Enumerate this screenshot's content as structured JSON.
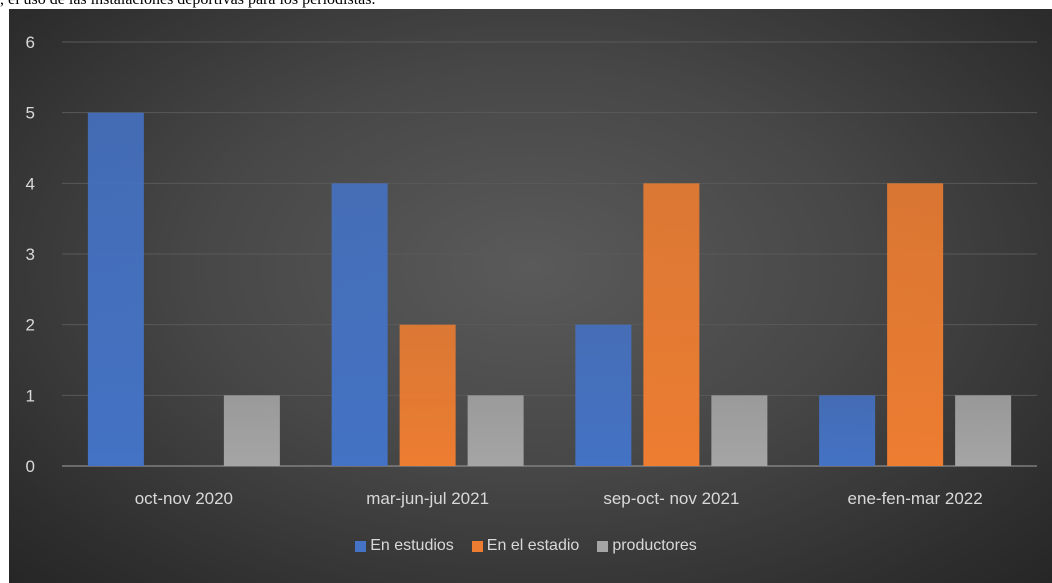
{
  "caption": ", el uso de las instalaciones deportivas para los periodistas.",
  "chart_data": {
    "type": "bar",
    "categories": [
      "oct-nov 2020",
      "mar-jun-jul 2021",
      "sep-oct- nov 2021",
      "ene-fen-mar 2022"
    ],
    "series": [
      {
        "name": "En estudios",
        "values": [
          5,
          4,
          2,
          1
        ],
        "color": "#4472c4"
      },
      {
        "name": "En el estadio",
        "values": [
          0,
          2,
          4,
          4
        ],
        "color": "#ed7d31"
      },
      {
        "name": "productores",
        "values": [
          1,
          1,
          1,
          1
        ],
        "color": "#a5a5a5"
      }
    ],
    "ylim": [
      0,
      6
    ],
    "yticks": [
      "0",
      "1",
      "2",
      "3",
      "4",
      "5",
      "6"
    ],
    "grid": true,
    "legend": "bottom",
    "background": "#404040",
    "text_color": "#d9d9d9",
    "gridline_color": "#595959"
  }
}
